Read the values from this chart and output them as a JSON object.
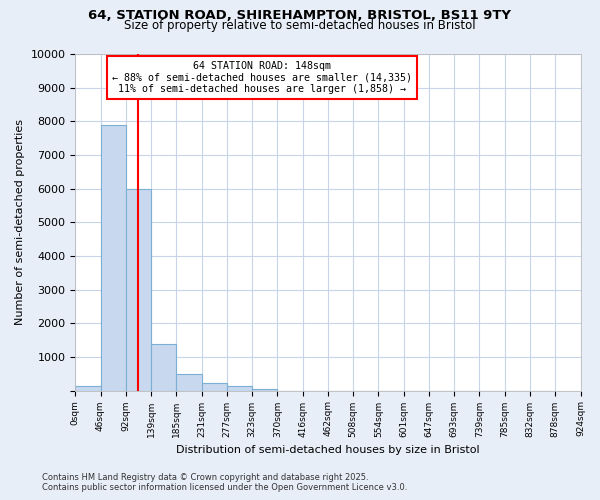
{
  "title_line1": "64, STATION ROAD, SHIREHAMPTON, BRISTOL, BS11 9TY",
  "title_line2": "Size of property relative to semi-detached houses in Bristol",
  "xlabel": "Distribution of semi-detached houses by size in Bristol",
  "ylabel": "Number of semi-detached properties",
  "bar_values": [
    150,
    7900,
    6000,
    1380,
    480,
    220,
    130,
    60,
    0,
    0,
    0,
    0,
    0,
    0,
    0,
    0,
    0,
    0,
    0
  ],
  "bin_labels": [
    "0sqm",
    "46sqm",
    "92sqm",
    "139sqm",
    "185sqm",
    "231sqm",
    "277sqm",
    "323sqm",
    "370sqm",
    "416sqm",
    "462sqm",
    "508sqm",
    "554sqm",
    "601sqm",
    "647sqm",
    "693sqm",
    "739sqm",
    "785sqm",
    "832sqm",
    "878sqm",
    "924sqm"
  ],
  "bar_color": "#c8d9ef",
  "bar_edge_color": "#7bafd4",
  "grid_color": "#c8d4e8",
  "vline_x": 2.5,
  "vline_color": "red",
  "annotation_text_line1": "64 STATION ROAD: 148sqm",
  "annotation_text_line2": "← 88% of semi-detached houses are smaller (14,335)",
  "annotation_text_line3": "11% of semi-detached houses are larger (1,858) →",
  "annotation_box_color": "white",
  "annotation_box_edge_color": "red",
  "ylim": [
    0,
    10000
  ],
  "yticks": [
    0,
    1000,
    2000,
    3000,
    4000,
    5000,
    6000,
    7000,
    8000,
    9000,
    10000
  ],
  "footer_line1": "Contains HM Land Registry data © Crown copyright and database right 2025.",
  "footer_line2": "Contains public sector information licensed under the Open Government Licence v3.0.",
  "plot_bg_color": "#ffffff",
  "fig_bg_color": "#e8eef8"
}
